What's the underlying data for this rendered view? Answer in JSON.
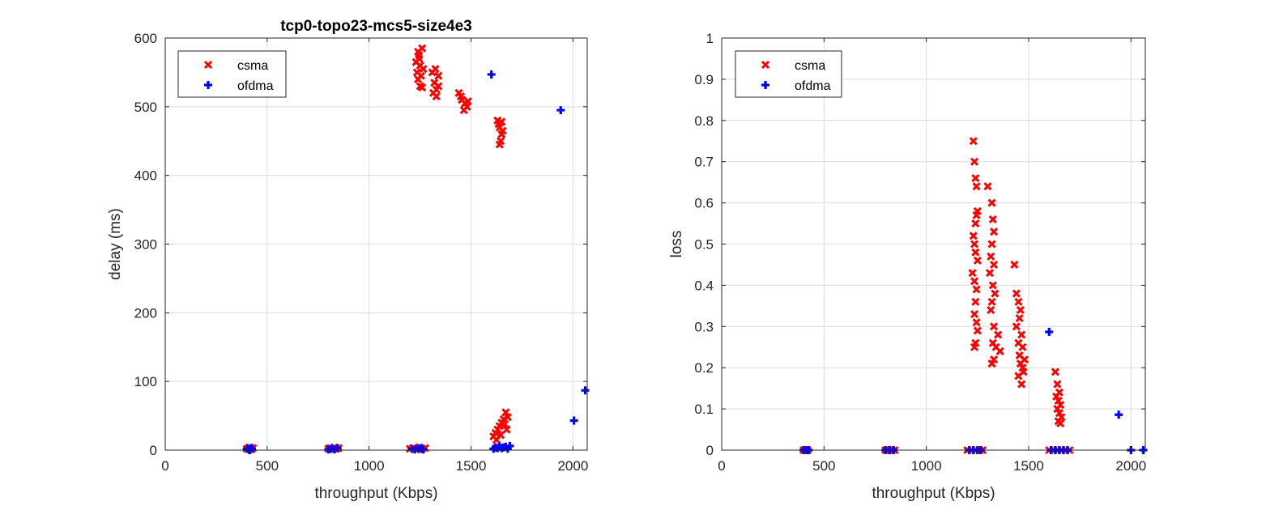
{
  "chart_data": [
    {
      "type": "scatter",
      "title": "tcp0-topo23-mcs5-size4e3",
      "xlabel": "throughput (Kbps)",
      "ylabel": "delay (ms)",
      "xlim": [
        0,
        2070
      ],
      "ylim": [
        0,
        600
      ],
      "xticks": [
        0,
        500,
        1000,
        1500,
        2000
      ],
      "yticks": [
        0,
        100,
        200,
        300,
        400,
        500,
        600
      ],
      "grid": true,
      "legend_position": "top-left",
      "series": [
        {
          "name": "csma",
          "marker": "x",
          "color": "#ff0000",
          "points": [
            [
              400,
              2
            ],
            [
              410,
              3
            ],
            [
              420,
              1
            ],
            [
              415,
              4
            ],
            [
              425,
              2
            ],
            [
              430,
              3
            ],
            [
              800,
              2
            ],
            [
              810,
              3
            ],
            [
              820,
              1
            ],
            [
              830,
              4
            ],
            [
              840,
              2
            ],
            [
              850,
              3
            ],
            [
              1200,
              2
            ],
            [
              1215,
              3
            ],
            [
              1230,
              1
            ],
            [
              1245,
              4
            ],
            [
              1260,
              2
            ],
            [
              1275,
              3
            ],
            [
              1240,
              580
            ],
            [
              1245,
              570
            ],
            [
              1250,
              560
            ],
            [
              1235,
              550
            ],
            [
              1255,
              545
            ],
            [
              1240,
              540
            ],
            [
              1250,
              530
            ],
            [
              1265,
              555
            ],
            [
              1245,
              575
            ],
            [
              1260,
              585
            ],
            [
              1230,
              565
            ],
            [
              1260,
              528
            ],
            [
              1310,
              550
            ],
            [
              1320,
              535
            ],
            [
              1330,
              525
            ],
            [
              1340,
              545
            ],
            [
              1315,
              520
            ],
            [
              1330,
              515
            ],
            [
              1340,
              530
            ],
            [
              1325,
              555
            ],
            [
              1440,
              520
            ],
            [
              1455,
              510
            ],
            [
              1470,
              505
            ],
            [
              1480,
              500
            ],
            [
              1465,
              495
            ],
            [
              1450,
              515
            ],
            [
              1485,
              508
            ],
            [
              1630,
              480
            ],
            [
              1640,
              470
            ],
            [
              1650,
              460
            ],
            [
              1645,
              450
            ],
            [
              1635,
              475
            ],
            [
              1655,
              465
            ],
            [
              1640,
              445
            ],
            [
              1650,
              478
            ],
            [
              1610,
              20
            ],
            [
              1620,
              25
            ],
            [
              1630,
              30
            ],
            [
              1640,
              35
            ],
            [
              1650,
              40
            ],
            [
              1660,
              45
            ],
            [
              1670,
              55
            ],
            [
              1680,
              48
            ],
            [
              1625,
              15
            ],
            [
              1645,
              22
            ],
            [
              1665,
              38
            ],
            [
              1675,
              30
            ]
          ]
        },
        {
          "name": "ofdma",
          "marker": "+",
          "color": "#0000ff",
          "points": [
            [
              400,
              2
            ],
            [
              410,
              1
            ],
            [
              420,
              3
            ],
            [
              415,
              0
            ],
            [
              425,
              2
            ],
            [
              800,
              1
            ],
            [
              815,
              2
            ],
            [
              830,
              1
            ],
            [
              845,
              3
            ],
            [
              1210,
              2
            ],
            [
              1225,
              1
            ],
            [
              1240,
              3
            ],
            [
              1255,
              2
            ],
            [
              1265,
              1
            ],
            [
              1600,
              547
            ],
            [
              1940,
              495
            ],
            [
              2060,
              87
            ],
            [
              2005,
              43
            ],
            [
              1610,
              2
            ],
            [
              1620,
              4
            ],
            [
              1630,
              3
            ],
            [
              1640,
              5
            ],
            [
              1650,
              3
            ],
            [
              1660,
              4
            ],
            [
              1670,
              5
            ],
            [
              1690,
              6
            ],
            [
              1680,
              2
            ]
          ]
        }
      ]
    },
    {
      "type": "scatter",
      "title": "",
      "xlabel": "throughput (Kbps)",
      "ylabel": "loss",
      "xlim": [
        0,
        2070
      ],
      "ylim": [
        0,
        1
      ],
      "xticks": [
        0,
        500,
        1000,
        1500,
        2000
      ],
      "yticks": [
        0,
        0.1,
        0.2,
        0.3,
        0.4,
        0.5,
        0.6,
        0.7,
        0.8,
        0.9,
        1
      ],
      "grid": true,
      "legend_position": "top-left",
      "series": [
        {
          "name": "csma",
          "marker": "x",
          "color": "#ff0000",
          "points": [
            [
              400,
              0
            ],
            [
              410,
              0
            ],
            [
              420,
              0
            ],
            [
              800,
              0
            ],
            [
              815,
              0
            ],
            [
              830,
              0
            ],
            [
              845,
              0
            ],
            [
              1200,
              0
            ],
            [
              1220,
              0
            ],
            [
              1240,
              0
            ],
            [
              1260,
              0
            ],
            [
              1275,
              0
            ],
            [
              1230,
              0.75
            ],
            [
              1235,
              0.7
            ],
            [
              1240,
              0.66
            ],
            [
              1245,
              0.64
            ],
            [
              1250,
              0.58
            ],
            [
              1245,
              0.57
            ],
            [
              1240,
              0.55
            ],
            [
              1230,
              0.52
            ],
            [
              1235,
              0.5
            ],
            [
              1240,
              0.48
            ],
            [
              1250,
              0.46
            ],
            [
              1225,
              0.43
            ],
            [
              1235,
              0.41
            ],
            [
              1245,
              0.39
            ],
            [
              1240,
              0.36
            ],
            [
              1235,
              0.33
            ],
            [
              1245,
              0.31
            ],
            [
              1250,
              0.29
            ],
            [
              1240,
              0.26
            ],
            [
              1235,
              0.25
            ],
            [
              1300,
              0.64
            ],
            [
              1320,
              0.6
            ],
            [
              1325,
              0.56
            ],
            [
              1330,
              0.53
            ],
            [
              1320,
              0.5
            ],
            [
              1315,
              0.47
            ],
            [
              1330,
              0.45
            ],
            [
              1310,
              0.43
            ],
            [
              1325,
              0.4
            ],
            [
              1335,
              0.38
            ],
            [
              1320,
              0.36
            ],
            [
              1315,
              0.34
            ],
            [
              1330,
              0.3
            ],
            [
              1325,
              0.26
            ],
            [
              1320,
              0.21
            ],
            [
              1330,
              0.22
            ],
            [
              1340,
              0.25
            ],
            [
              1350,
              0.28
            ],
            [
              1360,
              0.24
            ],
            [
              1430,
              0.45
            ],
            [
              1440,
              0.38
            ],
            [
              1450,
              0.36
            ],
            [
              1460,
              0.34
            ],
            [
              1455,
              0.32
            ],
            [
              1440,
              0.3
            ],
            [
              1465,
              0.28
            ],
            [
              1450,
              0.26
            ],
            [
              1470,
              0.25
            ],
            [
              1455,
              0.23
            ],
            [
              1460,
              0.21
            ],
            [
              1470,
              0.2
            ],
            [
              1450,
              0.18
            ],
            [
              1465,
              0.16
            ],
            [
              1475,
              0.19
            ],
            [
              1480,
              0.22
            ],
            [
              1630,
              0.19
            ],
            [
              1640,
              0.16
            ],
            [
              1650,
              0.14
            ],
            [
              1635,
              0.13
            ],
            [
              1645,
              0.12
            ],
            [
              1655,
              0.11
            ],
            [
              1640,
              0.1
            ],
            [
              1650,
              0.09
            ],
            [
              1660,
              0.08
            ],
            [
              1645,
              0.07
            ],
            [
              1655,
              0.065
            ],
            [
              1600,
              0
            ],
            [
              1620,
              0
            ],
            [
              1640,
              0
            ],
            [
              1660,
              0
            ],
            [
              1680,
              0
            ],
            [
              1700,
              0
            ]
          ]
        },
        {
          "name": "ofdma",
          "marker": "+",
          "color": "#0000ff",
          "points": [
            [
              400,
              0
            ],
            [
              415,
              0
            ],
            [
              425,
              0
            ],
            [
              800,
              0
            ],
            [
              820,
              0
            ],
            [
              840,
              0
            ],
            [
              1210,
              0
            ],
            [
              1230,
              0
            ],
            [
              1250,
              0
            ],
            [
              1265,
              0
            ],
            [
              1600,
              0.287
            ],
            [
              1940,
              0.086
            ],
            [
              2000,
              0
            ],
            [
              2060,
              0
            ],
            [
              1610,
              0
            ],
            [
              1630,
              0
            ],
            [
              1650,
              0
            ],
            [
              1670,
              0
            ],
            [
              1690,
              0
            ]
          ]
        }
      ]
    }
  ]
}
